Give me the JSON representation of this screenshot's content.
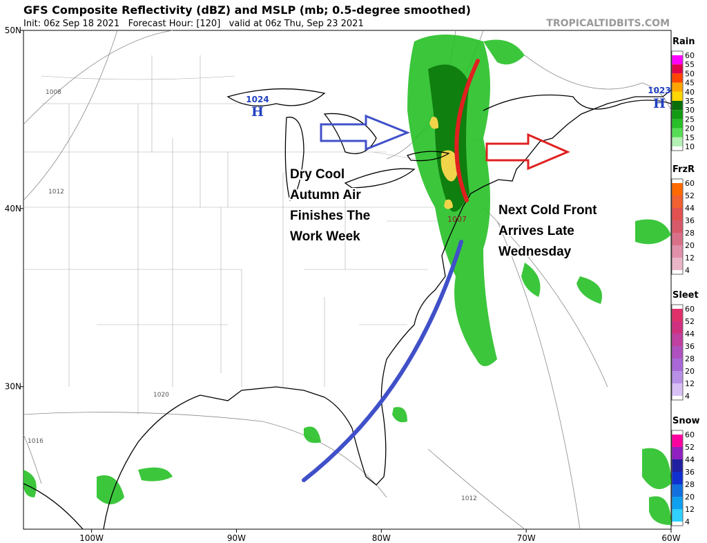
{
  "header": {
    "title": "GFS Composite Reflectivity (dBZ) and MSLP (mb; 0.5-degree smoothed)",
    "subtitle": "Init: 06z Sep 18 2021   Forecast Hour: [120]   valid at 06z Thu, Sep 23 2021",
    "source": "TROPICALTIDBITS.COM"
  },
  "map": {
    "lon_range": [
      -104.7,
      -60
    ],
    "lat_range": [
      22,
      50
    ],
    "lon_ticks": [
      {
        "value": -100,
        "label": "100W"
      },
      {
        "value": -90,
        "label": "90W"
      },
      {
        "value": -80,
        "label": "80W"
      },
      {
        "value": -70,
        "label": "70W"
      },
      {
        "value": -60,
        "label": "60W"
      }
    ],
    "lat_ticks": [
      {
        "value": 50,
        "label": "50N"
      },
      {
        "value": 40,
        "label": "40N"
      },
      {
        "value": 30,
        "label": "30N"
      }
    ],
    "pressure_centers": [
      {
        "value": "1024",
        "symbol": "H"
      },
      {
        "value": "1023",
        "symbol": "H"
      }
    ],
    "isobar_labels": [
      "1008",
      "1012",
      "1020",
      "1016",
      "1007",
      "1012"
    ],
    "annotations": [
      [
        "Dry Cool",
        "Autumn Air",
        "Finishes The",
        "Work Week"
      ],
      [
        "Next Cold Front",
        "Arrives Late",
        "Wednesday"
      ]
    ]
  },
  "legends": [
    {
      "title": "Rain",
      "levels": [
        60,
        55,
        50,
        45,
        40,
        35,
        30,
        25,
        20,
        15,
        10
      ],
      "colors": [
        "#ff00ff",
        "#e0004a",
        "#ff4500",
        "#ffa500",
        "#ffd700",
        "#0a6e0a",
        "#139a13",
        "#27c027",
        "#55dd55",
        "#b4f0b4"
      ]
    },
    {
      "title": "FrzR",
      "levels": [
        60,
        52,
        44,
        36,
        28,
        20,
        12,
        4
      ],
      "colors": [
        "#ff6a00",
        "#f06030",
        "#e25050",
        "#d85a6a",
        "#d87088",
        "#e090a8",
        "#ebb5c8"
      ]
    },
    {
      "title": "Sleet",
      "levels": [
        60,
        52,
        44,
        36,
        28,
        20,
        12,
        4
      ],
      "colors": [
        "#e0306a",
        "#d03080",
        "#c040a0",
        "#b050c0",
        "#a868d8",
        "#b890e8",
        "#d8c0f5"
      ]
    },
    {
      "title": "Snow",
      "levels": [
        60,
        52,
        44,
        36,
        28,
        20,
        12,
        4
      ],
      "colors": [
        "#ff00a0",
        "#9020c0",
        "#2020a0",
        "#1030d0",
        "#1070e0",
        "#10a0f0",
        "#30d0ff"
      ]
    }
  ]
}
